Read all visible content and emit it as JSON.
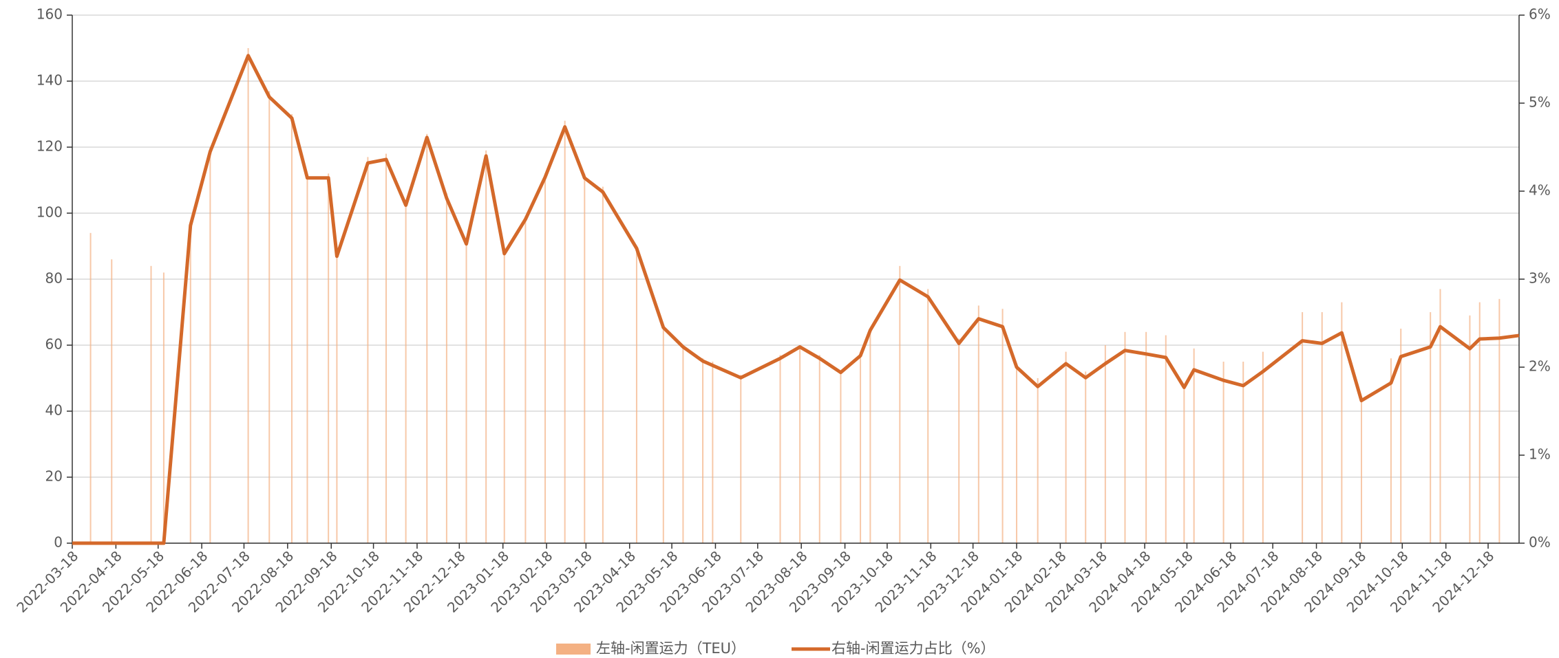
{
  "chart_data": {
    "type": "bar-line",
    "x": [
      "2022-03-18",
      "2022-03-31",
      "2022-04-15",
      "2022-05-13",
      "2022-05-22",
      "2022-06-10",
      "2022-06-24",
      "2022-07-21",
      "2022-08-05",
      "2022-08-21",
      "2022-09-01",
      "2022-09-16",
      "2022-09-22",
      "2022-10-14",
      "2022-10-27",
      "2022-11-10",
      "2022-11-25",
      "2022-12-09",
      "2022-12-23",
      "2023-01-06",
      "2023-01-19",
      "2023-02-03",
      "2023-02-17",
      "2023-03-03",
      "2023-03-17",
      "2023-03-30",
      "2023-04-23",
      "2023-05-12",
      "2023-05-26",
      "2023-06-09",
      "2023-06-16",
      "2023-07-06",
      "2023-08-03",
      "2023-08-17",
      "2023-08-31",
      "2023-09-15",
      "2023-09-29",
      "2023-10-06",
      "2023-10-27",
      "2023-11-16",
      "2023-12-08",
      "2023-12-22",
      "2024-01-08",
      "2024-01-18",
      "2024-02-02",
      "2024-02-22",
      "2024-03-07",
      "2024-03-21",
      "2024-04-04",
      "2024-04-19",
      "2024-05-03",
      "2024-05-16",
      "2024-05-23",
      "2024-06-13",
      "2024-06-27",
      "2024-07-11",
      "2024-08-08",
      "2024-08-22",
      "2024-09-05",
      "2024-09-19",
      "2024-10-10",
      "2024-10-17",
      "2024-11-07",
      "2024-11-14",
      "2024-12-05",
      "2024-12-12",
      "2024-12-26",
      "2025-01-09"
    ],
    "series": [
      {
        "name": "左轴-闲置运力（TEU）",
        "type": "bar",
        "color": "#f4b183",
        "values": [
          null,
          94,
          86,
          84,
          82,
          97,
          120,
          150,
          137,
          130,
          112,
          112,
          88,
          117,
          118,
          104,
          124,
          106,
          92,
          119,
          89,
          99,
          112,
          128,
          112,
          108,
          90,
          66,
          60,
          56,
          55,
          51,
          57,
          60,
          57,
          52,
          58,
          65,
          84,
          77,
          62,
          72,
          71,
          54,
          50,
          58,
          52,
          60,
          64,
          64,
          63,
          48,
          59,
          55,
          55,
          58,
          70,
          70,
          73,
          44,
          56,
          65,
          70,
          77,
          69,
          73,
          74,
          null
        ]
      },
      {
        "name": "右轴-闲置运力占比（%）",
        "type": "line",
        "axis": "y2",
        "color": "#d4692a",
        "values": [
          0,
          0,
          0,
          0,
          0,
          3.61,
          4.45,
          5.54,
          5.07,
          4.83,
          4.15,
          4.15,
          3.26,
          4.32,
          4.36,
          3.84,
          4.61,
          3.92,
          3.4,
          4.4,
          3.29,
          3.68,
          4.16,
          4.73,
          4.15,
          3.99,
          3.35,
          2.45,
          2.23,
          2.07,
          2.02,
          1.88,
          2.1,
          2.23,
          2.1,
          1.94,
          2.13,
          2.42,
          2.99,
          2.8,
          2.27,
          2.55,
          2.46,
          2.0,
          1.78,
          2.04,
          1.88,
          2.04,
          2.19,
          2.15,
          2.11,
          1.77,
          1.97,
          1.85,
          1.79,
          1.95,
          2.3,
          2.27,
          2.39,
          1.62,
          1.82,
          2.12,
          2.23,
          2.46,
          2.21,
          2.32,
          2.33,
          2.36
        ]
      }
    ],
    "xlim": [
      "2022-03-18",
      "2025-01-09"
    ],
    "xticks": [
      "2022-03-18",
      "2022-04-18",
      "2022-05-18",
      "2022-06-18",
      "2022-07-18",
      "2022-08-18",
      "2022-09-18",
      "2022-10-18",
      "2022-11-18",
      "2022-12-18",
      "2023-01-18",
      "2023-02-18",
      "2023-03-18",
      "2023-04-18",
      "2023-05-18",
      "2023-06-18",
      "2023-07-18",
      "2023-08-18",
      "2023-09-18",
      "2023-10-18",
      "2023-11-18",
      "2023-12-18",
      "2024-01-18",
      "2024-02-18",
      "2024-03-18",
      "2024-04-18",
      "2024-05-18",
      "2024-06-18",
      "2024-07-18",
      "2024-08-18",
      "2024-09-18",
      "2024-10-18",
      "2024-11-18",
      "2024-12-18"
    ],
    "ylim": [
      0,
      160
    ],
    "yticks": [
      0,
      20,
      40,
      60,
      80,
      100,
      120,
      140,
      160
    ],
    "y2lim": [
      0,
      6
    ],
    "y2ticks": [
      {
        "value": 0,
        "label": "0%"
      },
      {
        "value": 1,
        "label": "1%"
      },
      {
        "value": 2,
        "label": "2%"
      },
      {
        "value": 3,
        "label": "3%"
      },
      {
        "value": 4,
        "label": "4%"
      },
      {
        "value": 5,
        "label": "5%"
      },
      {
        "value": 6,
        "label": "6%"
      }
    ],
    "grid": true,
    "legend": "bottom"
  }
}
